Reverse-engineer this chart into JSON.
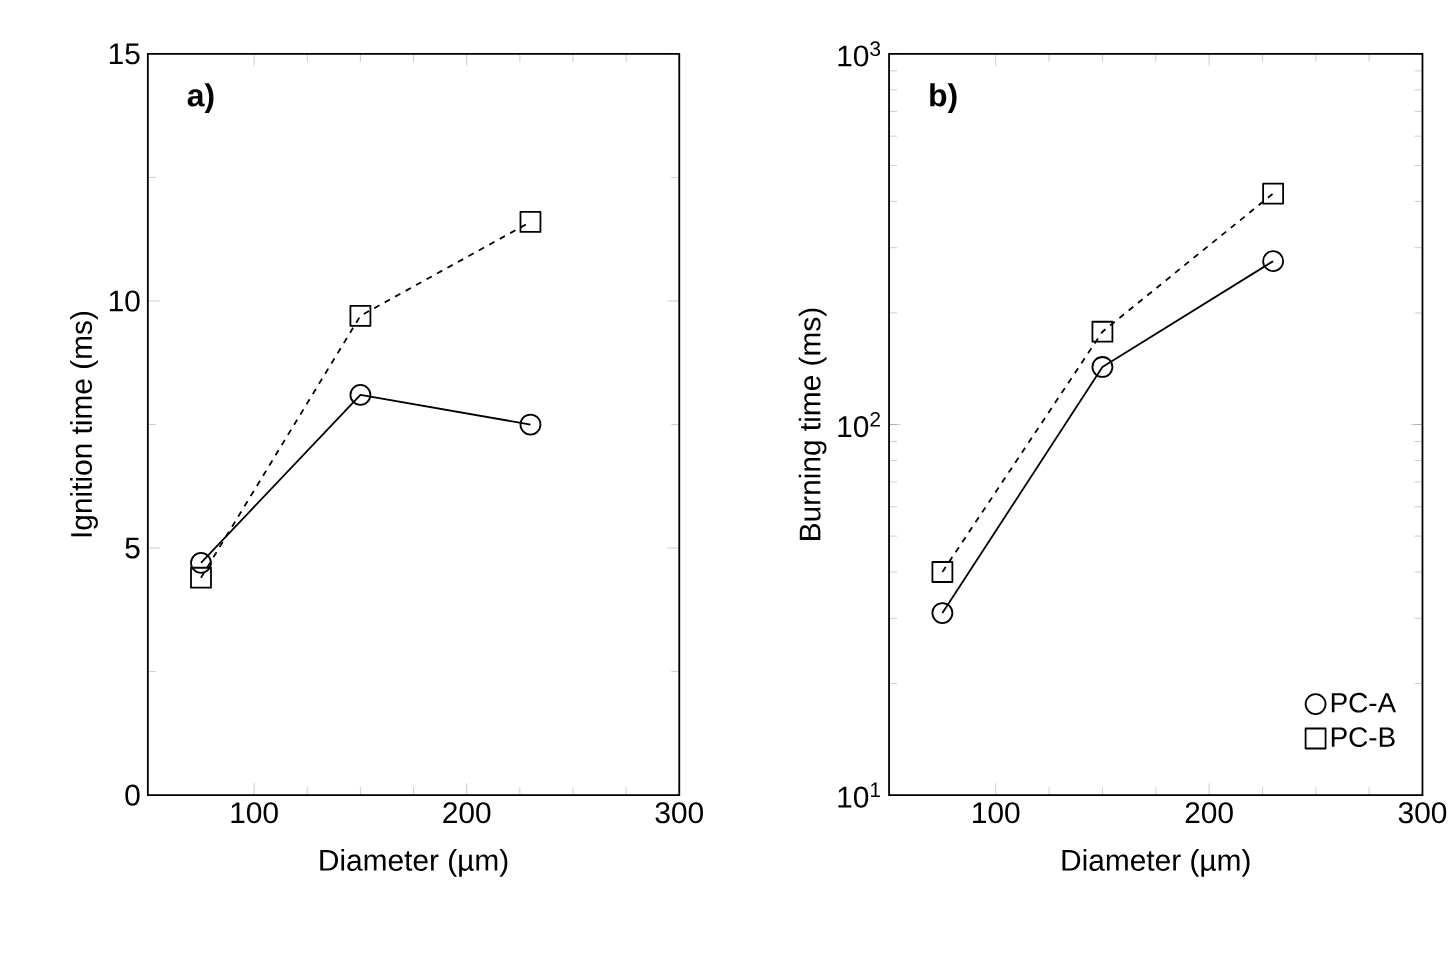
{
  "chart_data": [
    {
      "type": "line",
      "xlabel": "Diameter (µm)",
      "ylabel": "Ignition time (ms)",
      "annotations": [
        "**a)**"
      ],
      "x": [
        75,
        150,
        230
      ],
      "xlim": [
        50,
        300
      ],
      "xticks": [
        100,
        200,
        300
      ],
      "ylim": [
        0,
        15
      ],
      "yticks": [
        0,
        5,
        10,
        15
      ],
      "legend": false,
      "series": [
        {
          "color": "#000000",
          "values": [
            4.7,
            8.1,
            7.5
          ],
          "marker": "circle",
          "line_style": "solid"
        },
        {
          "color": "#000000",
          "values": [
            4.4,
            9.7,
            11.6
          ],
          "marker": "square",
          "line_style": "dashed"
        }
      ]
    },
    {
      "type": "line",
      "xlabel": "Diameter (µm)",
      "ylabel": "Burning time (ms)",
      "annotations": [
        "**b)**"
      ],
      "log": "y",
      "x": [
        75,
        150,
        230
      ],
      "xlim": [
        50,
        300
      ],
      "xticks": [
        100,
        200,
        300
      ],
      "ylim": [
        10,
        1000
      ],
      "yticks": [
        {
          "value": 10,
          "label": "10$^{1}$"
        },
        {
          "value": 100,
          "label": "10$^{2}$"
        },
        {
          "value": 1000,
          "label": "10$^{3}$"
        }
      ],
      "legend": "bottom right",
      "series": [
        {
          "name": "PC-A",
          "color": "#000000",
          "values": [
            31,
            143,
            276
          ],
          "marker": "circle",
          "line_style": "solid"
        },
        {
          "name": "PC-B",
          "color": "#000000",
          "values": [
            40,
            178,
            420
          ],
          "marker": "square",
          "line_style": "dashed"
        }
      ]
    }
  ]
}
